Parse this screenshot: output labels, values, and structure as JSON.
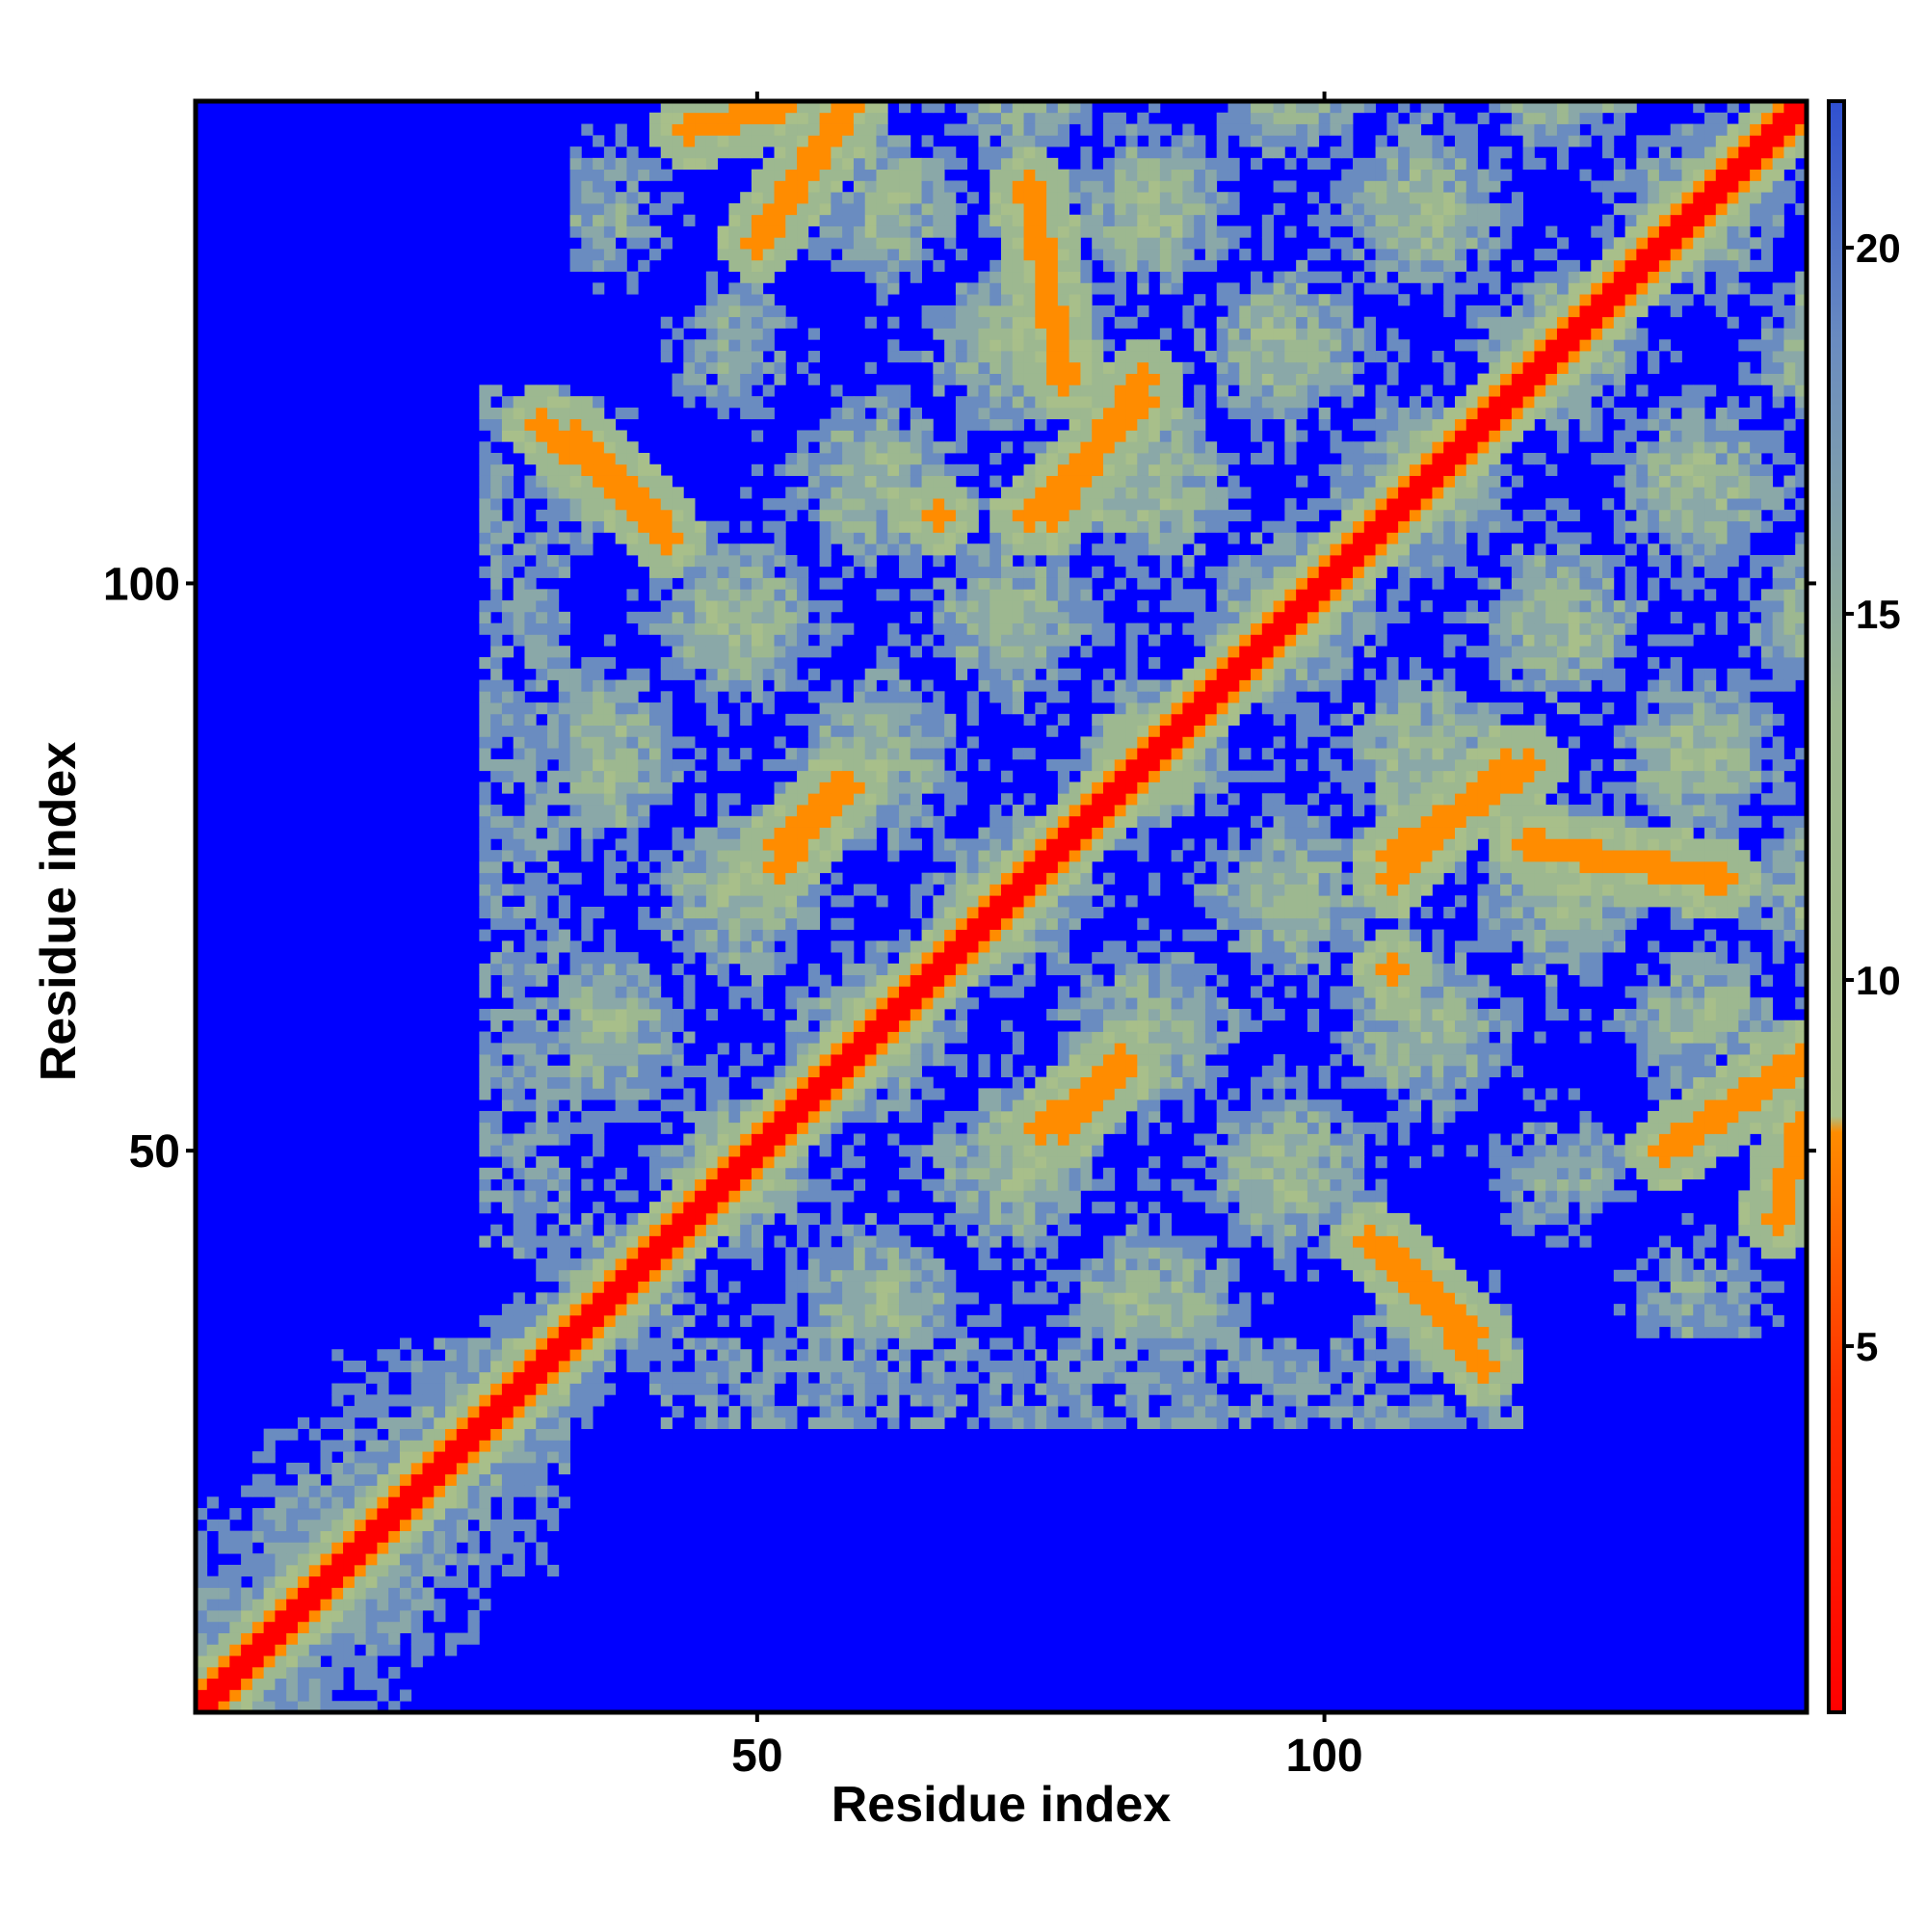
{
  "chart_data": {
    "type": "heatmap",
    "title": "",
    "xlabel": "Residue index",
    "ylabel": "Residue index",
    "n_residues": 142,
    "xlim": [
      1,
      142
    ],
    "ylim": [
      1,
      142
    ],
    "x_ticks": [
      50,
      100
    ],
    "y_ticks": [
      50,
      100
    ],
    "colorbar": {
      "ticks": [
        5,
        10,
        15,
        20
      ],
      "range": [
        0,
        22
      ],
      "colors": {
        "low": "#ff0000",
        "mid_low": "#ff8c00",
        "mid": "#a8bf8a",
        "mid_high": "#6a8cc0",
        "high": "#0000ff"
      }
    },
    "description_of_structure": {
      "blocks": [
        {
          "rows": [
            1,
            33
          ],
          "cols": [
            1,
            33
          ]
        }
      ],
      "contact_bands": [
        {
          "from": [
            52,
            142
          ],
          "to": [
            44,
            140
          ]
        },
        {
          "from": [
            31,
            114
          ],
          "to": [
            41,
            106
          ]
        },
        {
          "from": [
            74,
            106
          ],
          "to": [
            84,
            116
          ]
        },
        {
          "from": [
            52,
            77
          ],
          "to": [
            58,
            82
          ]
        },
        {
          "from": [
            75,
            52
          ],
          "to": [
            82,
            57
          ]
        },
        {
          "from": [
            104,
            42
          ],
          "to": [
            113,
            34
          ]
        },
        {
          "from": [
            106,
            76
          ],
          "to": [
            118,
            84
          ]
        },
        {
          "from": [
            118,
            77
          ],
          "to": [
            135,
            74
          ]
        },
        {
          "from": [
            130,
            50
          ],
          "to": [
            142,
            58
          ]
        },
        {
          "from": [
            106,
            66
          ],
          "to": [
            106,
            66
          ]
        }
      ]
    }
  }
}
